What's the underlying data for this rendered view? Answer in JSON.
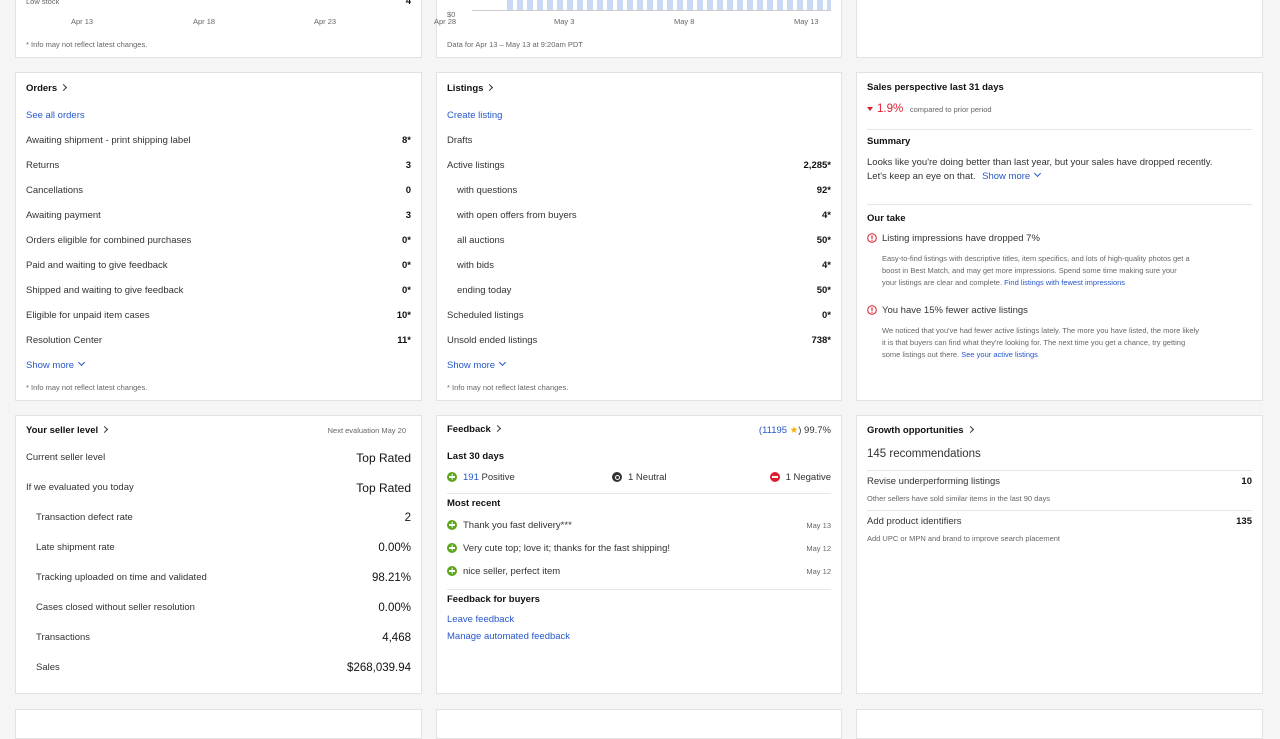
{
  "stock_panel": {
    "row_label": "Low stock",
    "row_value": "4",
    "note": "* Info may not reflect latest changes."
  },
  "sales_chart": {
    "y_label": "$0",
    "x_labels": [
      "Apr 13",
      "Apr 18",
      "Apr 23",
      "Apr 28",
      "May 3",
      "May 8",
      "May 13"
    ],
    "note": "Data for Apr 13 – May 13 at 9:20am PDT"
  },
  "orders": {
    "title": "Orders",
    "link": "See all orders",
    "rows": [
      [
        "Awaiting shipment - print shipping label",
        "8*"
      ],
      [
        "Returns",
        "3"
      ],
      [
        "Cancellations",
        "0"
      ],
      [
        "Awaiting payment",
        "3"
      ],
      [
        "Orders eligible for combined purchases",
        "0*"
      ],
      [
        "Paid and waiting to give feedback",
        "0*"
      ],
      [
        "Shipped and waiting to give feedback",
        "0*"
      ],
      [
        "Eligible for unpaid item cases",
        "10*"
      ],
      [
        "Resolution Center",
        "11*"
      ]
    ],
    "show_more": "Show more",
    "note": "* Info may not reflect latest changes."
  },
  "listings": {
    "title": "Listings",
    "link": "Create listing",
    "drafts": "Drafts",
    "rows": [
      [
        "Active listings",
        "2,285*"
      ],
      [
        "with questions",
        "92*"
      ],
      [
        "with open offers from buyers",
        "4*"
      ],
      [
        "all auctions",
        "50*"
      ],
      [
        "with bids",
        "4*"
      ],
      [
        "ending today",
        "50*"
      ],
      [
        "Scheduled listings",
        "0*"
      ],
      [
        "Unsold ended listings",
        "738*"
      ]
    ],
    "show_more": "Show more",
    "note": "* Info may not reflect latest changes."
  },
  "perspective": {
    "title": "Sales perspective last 31 days",
    "change": "1.9%",
    "change_note": "compared to prior period",
    "summary_title": "Summary",
    "summary_lines": [
      "Looks like you're doing better than last year, but your sales have dropped recently.",
      "Let's keep an eye on that."
    ],
    "show_more": "Show more",
    "take_title": "Our take",
    "items": [
      {
        "title": "Listing impressions have dropped 7%",
        "lines": [
          "Easy-to-find listings with descriptive titles, item specifics, and lots of high-quality photos get a",
          "boost in Best Match, and may get more impressions. Spend some time making sure your",
          "your listings are clear and complete."
        ],
        "link": "Find listings with fewest impressions"
      },
      {
        "title": "You have 15% fewer active listings",
        "lines": [
          "We noticed that you've had fewer active listings lately. The more you have listed, the more likely",
          "it is that buyers can find what they're looking for. The next time you get a chance, try getting",
          "some listings out there."
        ],
        "link": "See your active listings"
      }
    ]
  },
  "seller_level": {
    "title": "Your seller level",
    "next_eval": "Next evaluation May 20",
    "status_rows": [
      [
        "Current seller level",
        "Top Rated"
      ],
      [
        "If we evaluated you today",
        "Top Rated"
      ]
    ],
    "rows": [
      [
        "Transaction defect rate",
        "2"
      ],
      [
        "Late shipment rate",
        "0.00%"
      ],
      [
        "Tracking uploaded on time and validated",
        "98.21%"
      ],
      [
        "Cases closed without seller resolution",
        "0.00%"
      ],
      [
        "Transactions",
        "4,468"
      ],
      [
        "Sales",
        "$268,039.94"
      ]
    ]
  },
  "feedback": {
    "title": "Feedback",
    "score_count": "(11195",
    "score_percent": ") 99.7%",
    "last30_title": "Last 30 days",
    "positive_count": "191",
    "positive": "Positive",
    "neutral": "1 Neutral",
    "negative": "1 Negative",
    "recent_title": "Most recent",
    "recent": [
      [
        "Thank you fast delivery***",
        "May 13"
      ],
      [
        "Very cute top; love it; thanks for the fast shipping!",
        "May 12"
      ],
      [
        "nice seller, perfect item",
        "May 12"
      ]
    ],
    "buyers_title": "Feedback for buyers",
    "buyers_links": [
      "Leave feedback",
      "Manage automated feedback"
    ]
  },
  "growth": {
    "title": "Growth opportunities",
    "count": "145 recommendations",
    "items": [
      {
        "title": "Revise underperforming listings",
        "value": "10",
        "sub": "Other sellers have sold similar items in the last 90 days"
      },
      {
        "title": "Add product identifiers",
        "value": "135",
        "sub": "Add UPC or MPN and brand to improve search placement"
      }
    ]
  }
}
